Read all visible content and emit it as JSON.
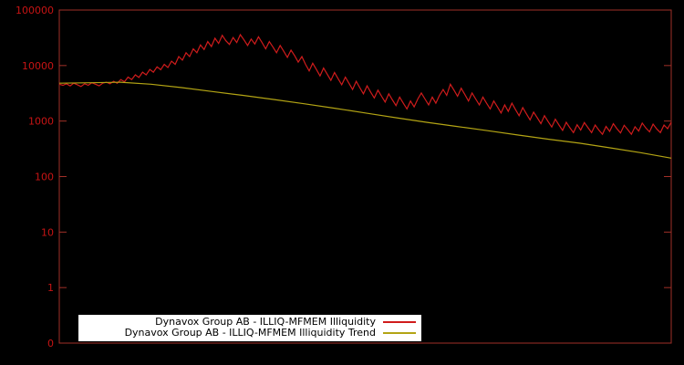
{
  "chart_data": {
    "type": "line",
    "title": "",
    "xlabel": "",
    "ylabel": "",
    "log_scale_y": true,
    "grid": false,
    "legend_position": "bottom-center",
    "background_color": "#000000",
    "border_color": "#a13028",
    "tick_label_color": "#c81414",
    "y_axis": {
      "tick_labels": [
        "100000",
        "10000",
        "1000",
        "100",
        "10",
        "1",
        "0"
      ],
      "tick_exponents": [
        5,
        4,
        3,
        2,
        1,
        0,
        -1
      ]
    },
    "series": [
      {
        "name": "Dynavox Group AB - ILLIQ-MFMEM Illiquidity",
        "color": "#d01c1c",
        "values": [
          4600,
          4400,
          4700,
          4300,
          4800,
          4500,
          4200,
          4700,
          4400,
          4900,
          4600,
          4300,
          4800,
          5000,
          4700,
          5200,
          4800,
          5600,
          5100,
          6200,
          5600,
          6800,
          6100,
          7600,
          6800,
          8500,
          7600,
          9500,
          8400,
          10500,
          9200,
          12000,
          10500,
          14500,
          12500,
          17000,
          14500,
          20000,
          17000,
          23500,
          19500,
          27000,
          22000,
          31000,
          25000,
          35000,
          28000,
          24000,
          32000,
          26000,
          36000,
          29000,
          23000,
          30000,
          24500,
          33000,
          26000,
          20000,
          27000,
          21500,
          17000,
          23000,
          18000,
          14000,
          19000,
          15000,
          11500,
          14500,
          10500,
          8000,
          11000,
          8500,
          6500,
          9000,
          7000,
          5400,
          7500,
          5800,
          4500,
          6200,
          4800,
          3700,
          5200,
          4000,
          3100,
          4300,
          3300,
          2600,
          3600,
          2800,
          2200,
          3100,
          2400,
          1900,
          2700,
          2100,
          1650,
          2300,
          1800,
          2500,
          3200,
          2500,
          1950,
          2700,
          2100,
          2900,
          3700,
          2900,
          4600,
          3600,
          2800,
          3900,
          3000,
          2300,
          3200,
          2500,
          1950,
          2700,
          2100,
          1650,
          2300,
          1800,
          1400,
          1950,
          1500,
          2100,
          1600,
          1250,
          1750,
          1350,
          1050,
          1450,
          1150,
          900,
          1250,
          980,
          780,
          1080,
          850,
          680,
          950,
          760,
          620,
          860,
          690,
          940,
          760,
          620,
          850,
          690,
          580,
          800,
          650,
          900,
          730,
          610,
          840,
          700,
          580,
          790,
          660,
          920,
          750,
          640,
          880,
          720,
          620,
          850,
          730,
          950
        ]
      },
      {
        "name": "Dynavox Group AB - ILLIQ-MFMEM Illiquidity Trend",
        "color": "#b3a414",
        "x_fractions": [
          0,
          0.05,
          0.1,
          0.15,
          0.2,
          0.25,
          0.3,
          0.35,
          0.4,
          0.45,
          0.5,
          0.55,
          0.6,
          0.65,
          0.7,
          0.75,
          0.8,
          0.85,
          0.9,
          0.95,
          1.0
        ],
        "values": [
          4800,
          4900,
          5000,
          4600,
          4000,
          3400,
          2900,
          2450,
          2050,
          1700,
          1400,
          1150,
          950,
          800,
          670,
          560,
          470,
          400,
          330,
          270,
          215
        ]
      }
    ]
  },
  "legend": {
    "entries": [
      {
        "label": "Dynavox Group AB - ILLIQ-MFMEM Illiquidity"
      },
      {
        "label": "Dynavox Group AB - ILLIQ-MFMEM Illiquidity Trend"
      }
    ]
  }
}
